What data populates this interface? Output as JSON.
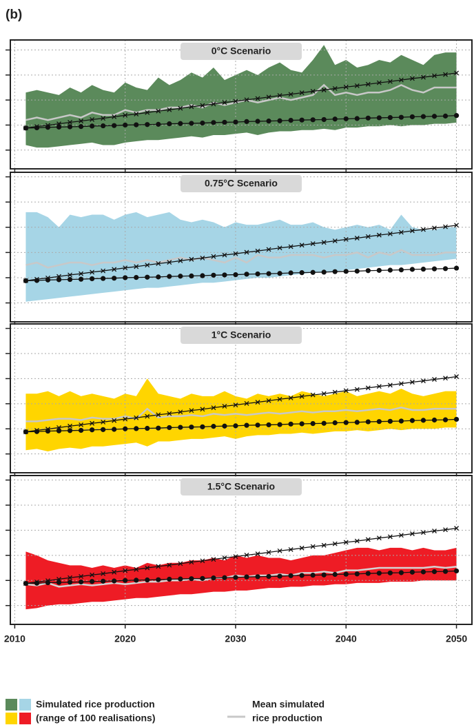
{
  "panel_label": "(b)",
  "legend": {
    "items": [
      {
        "lines": [
          "Simulated rice production",
          "(range of 100 realisations)"
        ],
        "colors": [
          "#5b8a5b",
          "#a6d5e6",
          "#ffd500",
          "#ee1c25"
        ]
      },
      {
        "lines": [
          "Mean simulated",
          "rice production"
        ],
        "color": "#c8c8c8"
      }
    ]
  },
  "chart_data": [
    {
      "type": "line",
      "title": "0°C Scenario",
      "x": [
        2011,
        2012,
        2013,
        2014,
        2015,
        2016,
        2017,
        2018,
        2019,
        2020,
        2021,
        2022,
        2023,
        2024,
        2025,
        2026,
        2027,
        2028,
        2029,
        2030,
        2031,
        2032,
        2033,
        2034,
        2035,
        2036,
        2037,
        2038,
        2039,
        2040,
        2041,
        2042,
        2043,
        2044,
        2045,
        2046,
        2047,
        2048,
        2049,
        2050
      ],
      "xlim": [
        2009.6,
        2051.4
      ],
      "xticks": [
        2010,
        2020,
        2030,
        2040,
        2050
      ],
      "show_xtick_labels": false,
      "ylim": [
        0.25,
        5.4
      ],
      "yticks": [
        1,
        2,
        3,
        4,
        5
      ],
      "grid": true,
      "band": {
        "color": "#5b8a5b",
        "lower": [
          1.2,
          1.1,
          1.1,
          1.15,
          1.2,
          1.25,
          1.3,
          1.2,
          1.2,
          1.3,
          1.35,
          1.4,
          1.4,
          1.45,
          1.5,
          1.55,
          1.5,
          1.6,
          1.6,
          1.65,
          1.7,
          1.6,
          1.7,
          1.75,
          1.75,
          1.8,
          1.8,
          1.85,
          1.8,
          1.9,
          1.9,
          1.95,
          1.95,
          2.0,
          1.95,
          2.0,
          2.0,
          2.05,
          2.05,
          2.1
        ],
        "upper": [
          3.3,
          3.4,
          3.3,
          3.2,
          3.5,
          3.3,
          3.6,
          3.4,
          3.3,
          3.7,
          3.5,
          3.4,
          3.9,
          3.6,
          3.8,
          4.1,
          3.9,
          4.3,
          3.8,
          4.0,
          4.2,
          4.0,
          4.3,
          4.5,
          4.2,
          4.1,
          4.6,
          5.2,
          4.4,
          4.6,
          4.3,
          4.4,
          4.6,
          4.5,
          4.8,
          4.6,
          4.4,
          4.8,
          4.9,
          4.9
        ]
      },
      "series": [
        {
          "color": "#c8c8c8",
          "values": [
            2.2,
            2.3,
            2.2,
            2.3,
            2.4,
            2.3,
            2.5,
            2.4,
            2.4,
            2.6,
            2.5,
            2.6,
            2.6,
            2.7,
            2.7,
            2.8,
            2.7,
            2.9,
            2.8,
            2.9,
            3.0,
            2.9,
            3.0,
            3.1,
            3.0,
            3.1,
            3.2,
            3.6,
            3.2,
            3.3,
            3.2,
            3.3,
            3.3,
            3.4,
            3.6,
            3.4,
            3.3,
            3.5,
            3.5,
            3.5
          ]
        },
        {
          "color": "#111111",
          "marker": "circle",
          "values": [
            1.88,
            1.89,
            1.91,
            1.92,
            1.93,
            1.94,
            1.96,
            1.97,
            1.98,
            2.0,
            2.01,
            2.02,
            2.03,
            2.05,
            2.06,
            2.07,
            2.08,
            2.1,
            2.11,
            2.12,
            2.14,
            2.15,
            2.16,
            2.17,
            2.19,
            2.2,
            2.21,
            2.22,
            2.24,
            2.25,
            2.26,
            2.28,
            2.29,
            2.3,
            2.31,
            2.33,
            2.34,
            2.35,
            2.36,
            2.38
          ]
        },
        {
          "color": "#111111",
          "marker": "x",
          "values": [
            1.88,
            1.94,
            1.99,
            2.05,
            2.11,
            2.16,
            2.22,
            2.27,
            2.33,
            2.39,
            2.44,
            2.5,
            2.56,
            2.61,
            2.67,
            2.73,
            2.78,
            2.84,
            2.9,
            2.95,
            3.01,
            3.06,
            3.12,
            3.18,
            3.23,
            3.29,
            3.35,
            3.4,
            3.46,
            3.52,
            3.57,
            3.63,
            3.69,
            3.74,
            3.8,
            3.86,
            3.91,
            3.97,
            4.02,
            4.08
          ]
        }
      ]
    },
    {
      "type": "line",
      "title": "0.75°C Scenario",
      "x": [
        2011,
        2012,
        2013,
        2014,
        2015,
        2016,
        2017,
        2018,
        2019,
        2020,
        2021,
        2022,
        2023,
        2024,
        2025,
        2026,
        2027,
        2028,
        2029,
        2030,
        2031,
        2032,
        2033,
        2034,
        2035,
        2036,
        2037,
        2038,
        2039,
        2040,
        2041,
        2042,
        2043,
        2044,
        2045,
        2046,
        2047,
        2048,
        2049,
        2050
      ],
      "xlim": [
        2009.6,
        2051.4
      ],
      "xticks": [
        2010,
        2020,
        2030,
        2040,
        2050
      ],
      "show_xtick_labels": false,
      "ylim": [
        0.25,
        6.18
      ],
      "yticks": [
        1,
        2,
        3,
        4,
        5,
        6
      ],
      "grid": true,
      "band": {
        "color": "#a6d5e6",
        "lower": [
          1.05,
          1.1,
          1.15,
          1.2,
          1.25,
          1.3,
          1.35,
          1.4,
          1.45,
          1.5,
          1.55,
          1.6,
          1.6,
          1.65,
          1.7,
          1.75,
          1.8,
          1.8,
          1.85,
          1.9,
          1.95,
          2.0,
          2.0,
          2.05,
          2.1,
          2.15,
          2.2,
          2.2,
          2.25,
          2.3,
          2.35,
          2.4,
          2.45,
          2.5,
          2.5,
          2.55,
          2.6,
          2.65,
          2.7,
          2.75
        ],
        "upper": [
          4.6,
          4.6,
          4.4,
          4.0,
          4.5,
          4.4,
          4.5,
          4.5,
          4.3,
          4.5,
          4.6,
          4.4,
          4.5,
          4.6,
          4.3,
          4.2,
          4.3,
          4.2,
          4.0,
          4.2,
          4.1,
          4.1,
          4.2,
          4.3,
          4.1,
          4.1,
          4.2,
          4.0,
          3.9,
          4.0,
          4.1,
          4.0,
          4.1,
          3.9,
          4.5,
          4.0,
          3.9,
          3.9,
          4.0,
          4.0
        ]
      },
      "series": [
        {
          "color": "#c8c8c8",
          "values": [
            2.5,
            2.6,
            2.4,
            2.5,
            2.6,
            2.6,
            2.5,
            2.6,
            2.6,
            2.7,
            2.6,
            2.7,
            2.6,
            2.7,
            2.8,
            2.7,
            2.8,
            2.7,
            2.6,
            2.8,
            2.6,
            2.9,
            2.8,
            2.8,
            2.9,
            2.9,
            2.9,
            2.8,
            2.9,
            2.9,
            3.0,
            2.8,
            3.0,
            2.9,
            3.1,
            2.9,
            2.9,
            2.9,
            3.0,
            3.0
          ]
        },
        {
          "color": "#111111",
          "marker": "circle",
          "values": [
            1.88,
            1.89,
            1.91,
            1.92,
            1.93,
            1.94,
            1.96,
            1.97,
            1.98,
            2.0,
            2.01,
            2.02,
            2.03,
            2.05,
            2.06,
            2.07,
            2.08,
            2.1,
            2.11,
            2.12,
            2.14,
            2.15,
            2.16,
            2.17,
            2.19,
            2.2,
            2.21,
            2.22,
            2.24,
            2.25,
            2.26,
            2.28,
            2.29,
            2.3,
            2.31,
            2.33,
            2.34,
            2.35,
            2.36,
            2.38
          ]
        },
        {
          "color": "#111111",
          "marker": "x",
          "values": [
            1.88,
            1.94,
            1.99,
            2.05,
            2.11,
            2.16,
            2.22,
            2.27,
            2.33,
            2.39,
            2.44,
            2.5,
            2.56,
            2.61,
            2.67,
            2.73,
            2.78,
            2.84,
            2.9,
            2.95,
            3.01,
            3.06,
            3.12,
            3.18,
            3.23,
            3.29,
            3.35,
            3.4,
            3.46,
            3.52,
            3.57,
            3.63,
            3.69,
            3.74,
            3.8,
            3.86,
            3.91,
            3.97,
            4.02,
            4.08
          ]
        }
      ]
    },
    {
      "type": "line",
      "title": "1°C Scenario",
      "x": [
        2011,
        2012,
        2013,
        2014,
        2015,
        2016,
        2017,
        2018,
        2019,
        2020,
        2021,
        2022,
        2023,
        2024,
        2025,
        2026,
        2027,
        2028,
        2029,
        2030,
        2031,
        2032,
        2033,
        2034,
        2035,
        2036,
        2037,
        2038,
        2039,
        2040,
        2041,
        2042,
        2043,
        2044,
        2045,
        2046,
        2047,
        2048,
        2049,
        2050
      ],
      "xlim": [
        2009.6,
        2051.4
      ],
      "xticks": [
        2010,
        2020,
        2030,
        2040,
        2050
      ],
      "show_xtick_labels": false,
      "ylim": [
        0.25,
        6.18
      ],
      "yticks": [
        1,
        2,
        3,
        4,
        5,
        6
      ],
      "grid": true,
      "band": {
        "color": "#ffd500",
        "lower": [
          1.15,
          1.2,
          1.1,
          1.2,
          1.25,
          1.2,
          1.3,
          1.3,
          1.35,
          1.4,
          1.45,
          1.3,
          1.5,
          1.5,
          1.55,
          1.6,
          1.6,
          1.65,
          1.7,
          1.6,
          1.7,
          1.75,
          1.75,
          1.8,
          1.8,
          1.85,
          1.8,
          1.85,
          1.9,
          1.9,
          1.95,
          1.9,
          1.95,
          2.0,
          1.95,
          2.0,
          2.0,
          2.0,
          2.05,
          2.05
        ],
        "upper": [
          3.4,
          3.4,
          3.5,
          3.3,
          3.5,
          3.3,
          3.4,
          3.3,
          3.2,
          3.4,
          3.3,
          4.0,
          3.4,
          3.3,
          3.2,
          3.4,
          3.3,
          3.3,
          3.5,
          3.3,
          3.2,
          3.4,
          3.3,
          3.4,
          3.3,
          3.5,
          3.4,
          3.3,
          3.4,
          3.5,
          3.3,
          3.4,
          3.5,
          3.4,
          3.6,
          3.4,
          3.3,
          3.4,
          3.5,
          3.5
        ]
      },
      "series": [
        {
          "color": "#c8c8c8",
          "values": [
            2.3,
            2.3,
            2.35,
            2.4,
            2.4,
            2.35,
            2.45,
            2.4,
            2.4,
            2.5,
            2.4,
            2.8,
            2.45,
            2.5,
            2.5,
            2.55,
            2.5,
            2.6,
            2.55,
            2.6,
            2.55,
            2.6,
            2.65,
            2.6,
            2.65,
            2.7,
            2.65,
            2.7,
            2.7,
            2.75,
            2.7,
            2.75,
            2.8,
            2.75,
            2.85,
            2.75,
            2.75,
            2.8,
            2.8,
            2.8
          ]
        },
        {
          "color": "#111111",
          "marker": "circle",
          "values": [
            1.88,
            1.89,
            1.91,
            1.92,
            1.93,
            1.94,
            1.96,
            1.97,
            1.98,
            2.0,
            2.01,
            2.02,
            2.03,
            2.05,
            2.06,
            2.07,
            2.08,
            2.1,
            2.11,
            2.12,
            2.14,
            2.15,
            2.16,
            2.17,
            2.19,
            2.2,
            2.21,
            2.22,
            2.24,
            2.25,
            2.26,
            2.28,
            2.29,
            2.3,
            2.31,
            2.33,
            2.34,
            2.35,
            2.36,
            2.38
          ]
        },
        {
          "color": "#111111",
          "marker": "x",
          "values": [
            1.88,
            1.94,
            1.99,
            2.05,
            2.11,
            2.16,
            2.22,
            2.27,
            2.33,
            2.39,
            2.44,
            2.5,
            2.56,
            2.61,
            2.67,
            2.73,
            2.78,
            2.84,
            2.9,
            2.95,
            3.01,
            3.06,
            3.12,
            3.18,
            3.23,
            3.29,
            3.35,
            3.4,
            3.46,
            3.52,
            3.57,
            3.63,
            3.69,
            3.74,
            3.8,
            3.86,
            3.91,
            3.97,
            4.02,
            4.08
          ]
        }
      ]
    },
    {
      "type": "line",
      "title": "1.5°C Scenario",
      "x": [
        2011,
        2012,
        2013,
        2014,
        2015,
        2016,
        2017,
        2018,
        2019,
        2020,
        2021,
        2022,
        2023,
        2024,
        2025,
        2026,
        2027,
        2028,
        2029,
        2030,
        2031,
        2032,
        2033,
        2034,
        2035,
        2036,
        2037,
        2038,
        2039,
        2040,
        2041,
        2042,
        2043,
        2044,
        2045,
        2046,
        2047,
        2048,
        2049,
        2050
      ],
      "xlim": [
        2009.6,
        2051.4
      ],
      "xticks": [
        2010,
        2020,
        2030,
        2040,
        2050
      ],
      "show_xtick_labels": true,
      "ylim": [
        0.25,
        6.18
      ],
      "yticks": [
        1,
        2,
        3,
        4,
        5,
        6
      ],
      "grid": true,
      "band": {
        "color": "#ee1c25",
        "lower": [
          0.85,
          0.9,
          1.0,
          1.05,
          1.05,
          1.1,
          1.15,
          1.15,
          1.2,
          1.25,
          1.3,
          1.3,
          1.35,
          1.4,
          1.45,
          1.45,
          1.5,
          1.55,
          1.55,
          1.6,
          1.6,
          1.65,
          1.7,
          1.7,
          1.75,
          1.75,
          1.8,
          1.8,
          1.85,
          1.85,
          1.9,
          1.9,
          1.9,
          1.95,
          1.95,
          1.95,
          2.0,
          2.0,
          2.0,
          2.0
        ],
        "upper": [
          3.15,
          3.0,
          2.8,
          2.7,
          2.6,
          2.6,
          2.5,
          2.6,
          2.5,
          2.6,
          2.5,
          2.7,
          2.6,
          2.7,
          2.7,
          2.8,
          2.8,
          2.9,
          2.8,
          3.0,
          2.9,
          3.0,
          2.9,
          2.9,
          2.8,
          2.9,
          3.0,
          3.0,
          3.1,
          3.2,
          3.3,
          3.3,
          3.2,
          3.3,
          3.3,
          3.2,
          3.3,
          3.2,
          3.2,
          3.3
        ]
      },
      "series": [
        {
          "color": "#d4d4d4",
          "values": [
            1.85,
            1.8,
            1.9,
            1.75,
            1.8,
            1.85,
            1.8,
            1.85,
            1.9,
            1.85,
            1.9,
            1.95,
            1.95,
            2.0,
            2.0,
            2.05,
            2.0,
            2.1,
            2.1,
            2.2,
            2.15,
            2.2,
            2.2,
            2.25,
            2.2,
            2.3,
            2.3,
            2.35,
            2.3,
            2.4,
            2.4,
            2.45,
            2.5,
            2.5,
            2.5,
            2.5,
            2.5,
            2.55,
            2.5,
            2.55
          ]
        },
        {
          "color": "#111111",
          "marker": "circle",
          "values": [
            1.88,
            1.89,
            1.91,
            1.92,
            1.93,
            1.94,
            1.96,
            1.97,
            1.98,
            2.0,
            2.01,
            2.02,
            2.03,
            2.05,
            2.06,
            2.07,
            2.08,
            2.1,
            2.11,
            2.12,
            2.14,
            2.15,
            2.16,
            2.17,
            2.19,
            2.2,
            2.21,
            2.22,
            2.24,
            2.25,
            2.26,
            2.28,
            2.29,
            2.3,
            2.31,
            2.33,
            2.34,
            2.35,
            2.36,
            2.38
          ]
        },
        {
          "color": "#111111",
          "marker": "x",
          "values": [
            1.88,
            1.94,
            1.99,
            2.05,
            2.11,
            2.16,
            2.22,
            2.27,
            2.33,
            2.39,
            2.44,
            2.5,
            2.56,
            2.61,
            2.67,
            2.73,
            2.78,
            2.84,
            2.9,
            2.95,
            3.01,
            3.06,
            3.12,
            3.18,
            3.23,
            3.29,
            3.35,
            3.4,
            3.46,
            3.52,
            3.57,
            3.63,
            3.69,
            3.74,
            3.8,
            3.86,
            3.91,
            3.97,
            4.02,
            4.08
          ]
        }
      ]
    }
  ]
}
